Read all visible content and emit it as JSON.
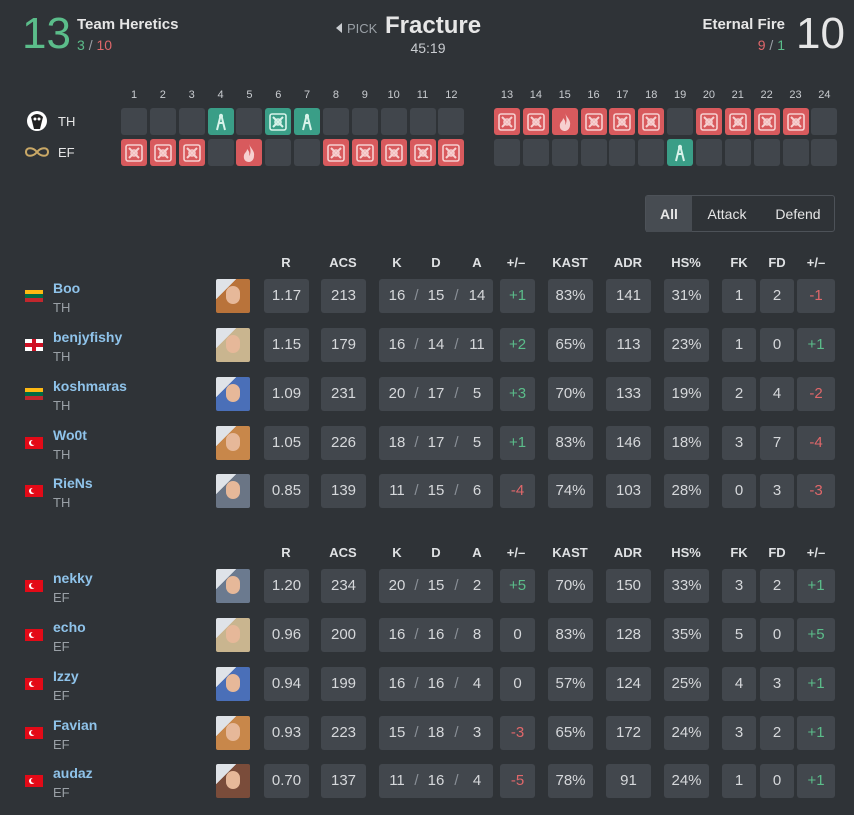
{
  "separator": "/",
  "header": {
    "team1": {
      "score": "13",
      "name": "Team Heretics",
      "half1": "3",
      "half2": "10"
    },
    "map": {
      "pick": "PICK",
      "name": "Fracture",
      "duration": "45:19"
    },
    "team2": {
      "score": "10",
      "name": "Eternal Fire",
      "half1": "9",
      "half2": "1"
    }
  },
  "rounds": {
    "numbers": [
      "1",
      "2",
      "3",
      "4",
      "5",
      "6",
      "7",
      "8",
      "9",
      "10",
      "11",
      "12",
      "13",
      "14",
      "15",
      "16",
      "17",
      "18",
      "19",
      "20",
      "21",
      "22",
      "23",
      "24"
    ],
    "team1_tag": "TH",
    "team2_tag": "EF"
  },
  "filters": [
    "All",
    "Attack",
    "Defend"
  ],
  "tables": [
    {
      "columns": [
        "R",
        "ACS",
        "K",
        "D",
        "A",
        "+/–",
        "KAST",
        "ADR",
        "HS%",
        "FK",
        "FD",
        "+/–"
      ],
      "rows": [
        {
          "name": "Boo",
          "team": "TH",
          "stats": [
            "1.17",
            "213",
            "16",
            "15",
            "14",
            "+1",
            "83%",
            "141",
            "31%",
            "1",
            "2",
            "-1"
          ]
        },
        {
          "name": "benjyfishy",
          "team": "TH",
          "stats": [
            "1.15",
            "179",
            "16",
            "14",
            "11",
            "+2",
            "65%",
            "113",
            "23%",
            "1",
            "0",
            "+1"
          ]
        },
        {
          "name": "koshmaras",
          "team": "TH",
          "stats": [
            "1.09",
            "231",
            "20",
            "17",
            "5",
            "+3",
            "70%",
            "133",
            "19%",
            "2",
            "4",
            "-2"
          ]
        },
        {
          "name": "Wo0t",
          "team": "TH",
          "stats": [
            "1.05",
            "226",
            "18",
            "17",
            "5",
            "+1",
            "83%",
            "146",
            "18%",
            "3",
            "7",
            "-4"
          ]
        },
        {
          "name": "RieNs",
          "team": "TH",
          "stats": [
            "0.85",
            "139",
            "11",
            "15",
            "6",
            "-4",
            "74%",
            "103",
            "28%",
            "0",
            "3",
            "-3"
          ]
        }
      ]
    },
    {
      "columns": [
        "R",
        "ACS",
        "K",
        "D",
        "A",
        "+/–",
        "KAST",
        "ADR",
        "HS%",
        "FK",
        "FD",
        "+/–"
      ],
      "rows": [
        {
          "name": "nekky",
          "team": "EF",
          "stats": [
            "1.20",
            "234",
            "20",
            "15",
            "2",
            "+5",
            "70%",
            "150",
            "33%",
            "3",
            "2",
            "+1"
          ]
        },
        {
          "name": "echo",
          "team": "EF",
          "stats": [
            "0.96",
            "200",
            "16",
            "16",
            "8",
            "0",
            "83%",
            "128",
            "35%",
            "5",
            "0",
            "+5"
          ]
        },
        {
          "name": "Izzy",
          "team": "EF",
          "stats": [
            "0.94",
            "199",
            "16",
            "16",
            "4",
            "0",
            "57%",
            "124",
            "25%",
            "4",
            "3",
            "+1"
          ]
        },
        {
          "name": "Favian",
          "team": "EF",
          "stats": [
            "0.93",
            "223",
            "15",
            "18",
            "3",
            "-3",
            "65%",
            "172",
            "24%",
            "3",
            "2",
            "+1"
          ]
        },
        {
          "name": "audaz",
          "team": "EF",
          "stats": [
            "0.70",
            "137",
            "11",
            "16",
            "4",
            "-5",
            "78%",
            "91",
            "24%",
            "1",
            "0",
            "+1"
          ]
        }
      ]
    }
  ]
}
